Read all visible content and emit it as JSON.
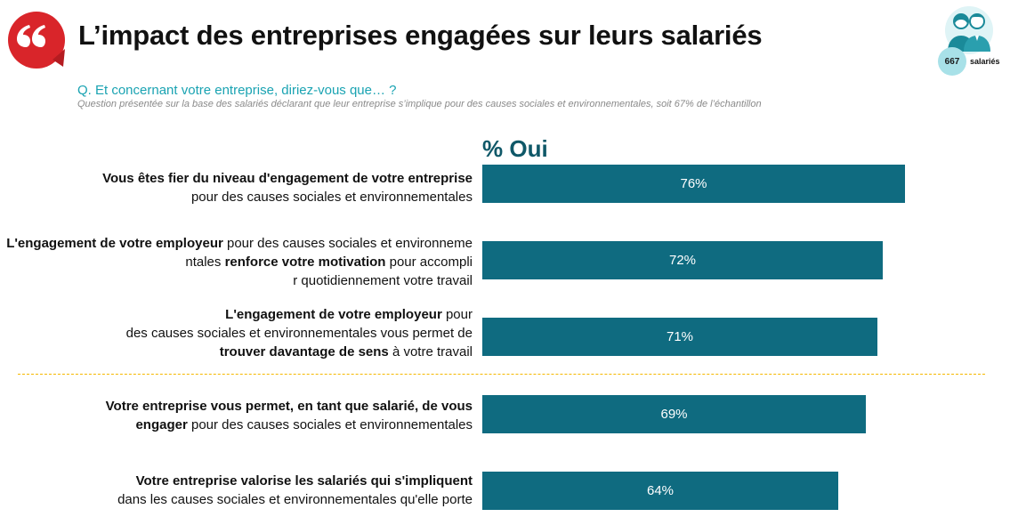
{
  "header": {
    "title": "L’impact des entreprises engagées sur leurs salariés",
    "sample_count": "667",
    "sample_label": "salariés"
  },
  "question": {
    "text": "Q. Et concernant votre entreprise, diriez-vous que… ?",
    "note": "Question présentée sur la base des salariés déclarant que leur entreprise s’implique pour des causes sociales et environnementales, soit 67% de l’échantillon"
  },
  "colors": {
    "brand_red": "#d9252a",
    "bar": "#0f6b80",
    "question_text": "#1aa3b2",
    "header_text": "#0f5868",
    "separator": "#f5b800"
  },
  "chart_data": {
    "type": "bar",
    "orientation": "horizontal",
    "column_header": "% Oui",
    "x_range": [
      0,
      100
    ],
    "value_format": "percent",
    "categories": [
      {
        "parts": [
          {
            "bold": "Vous êtes fier du niveau d'engagement de votre entreprise"
          },
          {
            "text": " pour des causes sociales et environnementales"
          }
        ]
      },
      {
        "parts": [
          {
            "bold": "L'engagement de votre employeur"
          },
          {
            "text": " pour des causes sociales et environnementales "
          },
          {
            "bold": "renforce votre motivation"
          },
          {
            "text": " pour accomplir quotidiennement votre travail"
          }
        ]
      },
      {
        "parts": [
          {
            "bold": "L'engagement de votre employeur"
          },
          {
            "text": " pour des causes sociales et environnementales vous permet de "
          },
          {
            "bold": "trouver davantage de sens"
          },
          {
            "text": " à votre travail"
          }
        ]
      },
      {
        "parts": [
          {
            "bold": "Votre entreprise vous permet, en tant que salarié, de vous engager"
          },
          {
            "text": " pour des causes sociales et environnementales"
          }
        ]
      },
      {
        "parts": [
          {
            "bold": "Votre entreprise valorise les salariés qui s'impliquent"
          },
          {
            "text": " dans les causes sociales et environnementales qu'elle porte"
          }
        ]
      }
    ],
    "values": [
      76,
      72,
      71,
      69,
      64
    ],
    "value_labels": [
      "76%",
      "72%",
      "71%",
      "69%",
      "64%"
    ],
    "separator_after_index": 2
  }
}
